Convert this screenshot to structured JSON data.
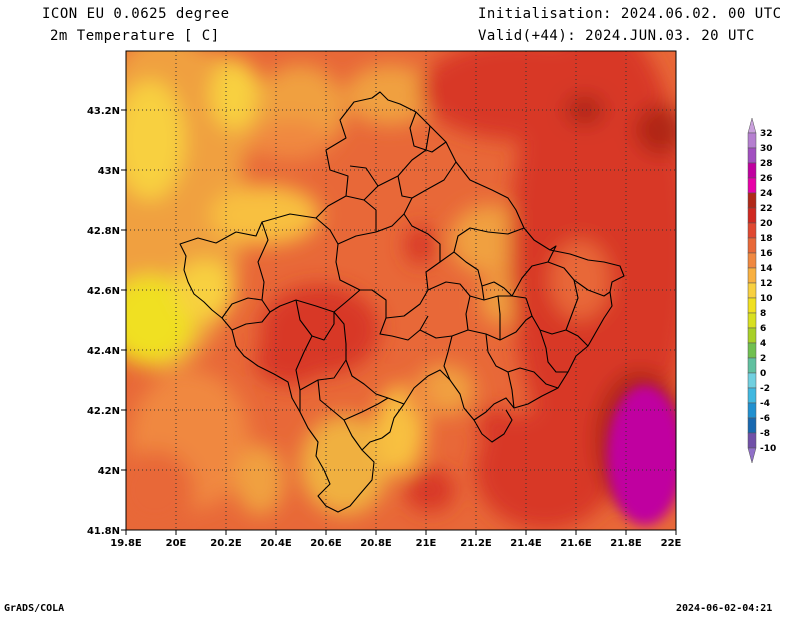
{
  "header": {
    "model": "ICON EU 0.0625 degree",
    "variable": "2m Temperature [ C]",
    "init": "Initialisation: 2024.06.02. 00 UTC",
    "valid": "Valid(+44): 2024.JUN.03. 20 UTC"
  },
  "axes": {
    "lon_ticks": [
      "19.8E",
      "20E",
      "20.2E",
      "20.4E",
      "20.6E",
      "20.8E",
      "21E",
      "21.2E",
      "21.4E",
      "21.6E",
      "21.8E",
      "22E"
    ],
    "lat_ticks": [
      "41.8N",
      "42N",
      "42.2N",
      "42.4N",
      "42.6N",
      "42.8N",
      "43N",
      "43.2N"
    ]
  },
  "colorbar": {
    "levels": [
      "32",
      "30",
      "28",
      "26",
      "24",
      "22",
      "20",
      "18",
      "16",
      "14",
      "12",
      "10",
      "8",
      "6",
      "4",
      "2",
      "0",
      "-2",
      "-4",
      "-6",
      "-8",
      "-10"
    ],
    "colors": [
      "#c9a0dc",
      "#b57fd0",
      "#a14fc0",
      "#c000a0",
      "#e800a8",
      "#b02818",
      "#d02820",
      "#e04830",
      "#e86838",
      "#f08840",
      "#f8b040",
      "#f8d040",
      "#f0e020",
      "#d8e020",
      "#a8d028",
      "#70c050",
      "#60c0a0",
      "#70d0e0",
      "#40b8e0",
      "#2090d0",
      "#1868b0",
      "#7050a8",
      "#9070c8"
    ]
  },
  "footer": {
    "left": "GrADS/COLA",
    "right": "2024-06-02-04:21"
  }
}
